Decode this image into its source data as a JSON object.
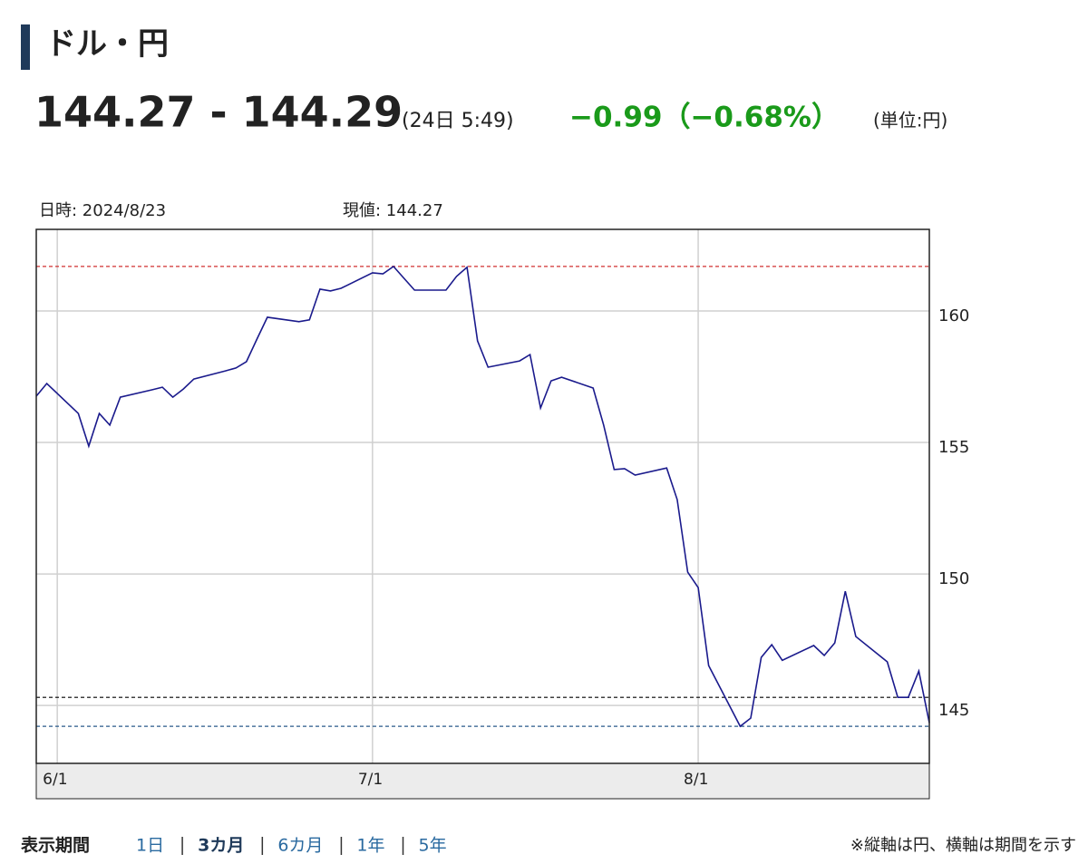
{
  "header": {
    "title": "ドル・円",
    "price": "144.27 - 144.29",
    "time": "(24日 5:49)",
    "change": "−0.99（−0.68%）",
    "unit": "(単位:円)"
  },
  "chart_data": {
    "type": "line",
    "annotations": [
      "日時: 2024/8/23",
      "現値: 144.27"
    ],
    "x": [
      "5/30",
      "5/31",
      "6/3",
      "6/4",
      "6/5",
      "6/6",
      "6/7",
      "6/10",
      "6/11",
      "6/12",
      "6/13",
      "6/14",
      "6/17",
      "6/18",
      "6/19",
      "6/20",
      "6/21",
      "6/24",
      "6/25",
      "6/26",
      "6/27",
      "6/28",
      "7/1",
      "7/2",
      "7/3",
      "7/4",
      "7/5",
      "7/8",
      "7/9",
      "7/10",
      "7/11",
      "7/12",
      "7/15",
      "7/16",
      "7/17",
      "7/18",
      "7/19",
      "7/22",
      "7/23",
      "7/24",
      "7/25",
      "7/26",
      "7/29",
      "7/30",
      "7/31",
      "8/1",
      "8/2",
      "8/5",
      "8/6",
      "8/7",
      "8/8",
      "8/9",
      "8/12",
      "8/13",
      "8/14",
      "8/15",
      "8/16",
      "8/19",
      "8/20",
      "8/21",
      "8/22",
      "8/23"
    ],
    "series": [
      {
        "color": "#1a1a8c",
        "values": [
          156.76,
          157.24,
          156.1,
          154.86,
          156.1,
          155.66,
          156.72,
          157.0,
          157.1,
          156.72,
          157.03,
          157.41,
          157.72,
          157.83,
          158.07,
          158.93,
          159.76,
          159.59,
          159.66,
          160.83,
          160.76,
          160.86,
          161.45,
          161.41,
          161.69,
          161.24,
          160.79,
          160.79,
          161.31,
          161.66,
          158.86,
          157.86,
          158.1,
          158.34,
          156.31,
          157.34,
          157.48,
          157.07,
          155.66,
          153.97,
          154.0,
          153.76,
          154.03,
          152.83,
          150.07,
          149.48,
          146.52,
          144.21,
          144.52,
          146.83,
          147.31,
          146.72,
          147.28,
          146.9,
          147.38,
          149.34,
          147.62,
          146.66,
          145.31,
          145.31,
          146.31,
          144.34
        ]
      }
    ],
    "xlim": [
      "5/30",
      "8/23"
    ],
    "xticks": [
      "6/1",
      "7/1",
      "8/1"
    ],
    "ylim": [
      142.8,
      163.1
    ],
    "yticks": [
      145,
      150,
      155,
      160
    ],
    "grid": true,
    "reference_lines": [
      {
        "value": 161.69,
        "color": "#d03030"
      },
      {
        "value": 145.31,
        "color": "#000000"
      },
      {
        "value": 144.21,
        "color": "#2a5a8a"
      }
    ]
  },
  "footer": {
    "label": "表示期間",
    "periods": [
      "1日",
      "3カ月",
      "6カ月",
      "1年",
      "5年"
    ],
    "active": 1,
    "note": "※縦軸は円、横軸は期間を示す"
  }
}
